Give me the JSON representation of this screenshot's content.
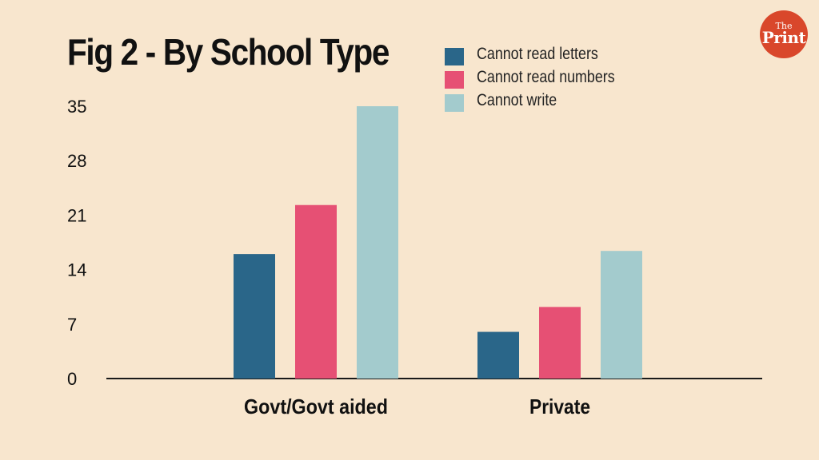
{
  "header": {
    "title": "Fig 2 - By School Type"
  },
  "logo": {
    "line1": "The",
    "line2": "Print",
    "color": "#d9472b"
  },
  "chart_data": {
    "type": "bar",
    "title": "Fig 2 - By School Type",
    "categories": [
      "Govt/Govt aided",
      "Private"
    ],
    "series": [
      {
        "name": "Cannot read letters",
        "color": "#2a6689",
        "values": [
          16.0,
          6.0
        ]
      },
      {
        "name": "Cannot read numbers",
        "color": "#e65074",
        "values": [
          22.3,
          9.2
        ]
      },
      {
        "name": "Cannot write",
        "color": "#a3cbcd",
        "values": [
          35.0,
          16.4
        ]
      }
    ],
    "yticks": [
      0,
      7,
      14,
      21,
      28,
      35
    ],
    "ylim": [
      0,
      35
    ],
    "xlabel": "",
    "ylabel": "",
    "grid": false,
    "legend": "top-right"
  }
}
